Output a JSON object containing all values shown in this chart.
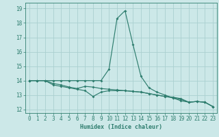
{
  "xlabel": "Humidex (Indice chaleur)",
  "bg_color": "#cce8e8",
  "grid_color": "#aad0d0",
  "line_color": "#2e7d6e",
  "series": [
    {
      "x": [
        0,
        1,
        2,
        3,
        4,
        5,
        6,
        7,
        8,
        9,
        10,
        11,
        12,
        13,
        14,
        15,
        16,
        17,
        18,
        19,
        20,
        21,
        22,
        23
      ],
      "y": [
        14.0,
        14.0,
        14.0,
        14.0,
        14.0,
        14.0,
        14.0,
        14.0,
        14.0,
        14.0,
        14.8,
        18.3,
        18.85,
        16.5,
        14.3,
        13.5,
        13.2,
        13.0,
        12.8,
        12.6,
        12.5,
        12.55,
        12.5,
        12.2
      ]
    },
    {
      "x": [
        0,
        1,
        2,
        3,
        4,
        5,
        6,
        7,
        8,
        9,
        10,
        11,
        12,
        13,
        14,
        15,
        16,
        17,
        18,
        19,
        20,
        21,
        22,
        23
      ],
      "y": [
        14.0,
        14.0,
        14.0,
        13.7,
        13.6,
        13.5,
        13.4,
        13.3,
        12.9,
        13.2,
        13.3,
        13.3,
        13.3,
        13.25,
        13.2,
        13.1,
        13.0,
        12.9,
        12.85,
        12.75,
        12.5,
        12.55,
        12.5,
        12.2
      ]
    },
    {
      "x": [
        0,
        1,
        2,
        3,
        4,
        5,
        6,
        7,
        8,
        9,
        10,
        11,
        12,
        13,
        14,
        15,
        16,
        17,
        18,
        19,
        20,
        21,
        22,
        23
      ],
      "y": [
        14.0,
        14.0,
        14.0,
        13.8,
        13.7,
        13.55,
        13.45,
        13.6,
        13.55,
        13.45,
        13.4,
        13.35,
        13.3,
        13.25,
        13.2,
        13.1,
        13.0,
        12.9,
        12.8,
        12.7,
        12.5,
        12.55,
        12.5,
        12.2
      ]
    }
  ],
  "xlim": [
    -0.5,
    23.5
  ],
  "ylim": [
    11.75,
    19.4
  ],
  "yticks": [
    12,
    13,
    14,
    15,
    16,
    17,
    18,
    19
  ],
  "xticks": [
    0,
    1,
    2,
    3,
    4,
    5,
    6,
    7,
    8,
    9,
    10,
    11,
    12,
    13,
    14,
    15,
    16,
    17,
    18,
    19,
    20,
    21,
    22,
    23
  ]
}
